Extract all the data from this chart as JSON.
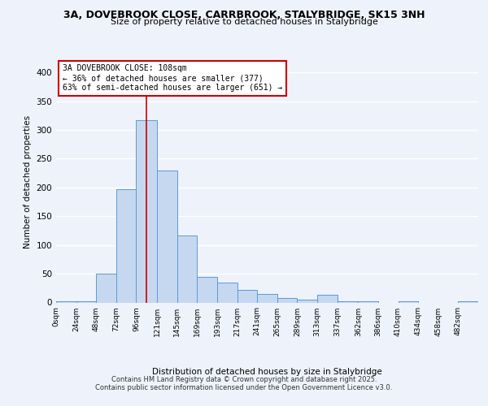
{
  "title1": "3A, DOVEBROOK CLOSE, CARRBROOK, STALYBRIDGE, SK15 3NH",
  "title2": "Size of property relative to detached houses in Stalybridge",
  "xlabel": "Distribution of detached houses by size in Stalybridge",
  "ylabel": "Number of detached properties",
  "bin_edges": [
    0,
    24,
    48,
    72,
    96,
    121,
    145,
    169,
    193,
    217,
    241,
    265,
    289,
    313,
    337,
    362,
    386,
    410,
    434,
    458,
    482,
    506
  ],
  "bar_heights": [
    2,
    2,
    50,
    197,
    317,
    230,
    117,
    45,
    35,
    22,
    15,
    8,
    5,
    13,
    2,
    2,
    0,
    2,
    0,
    0,
    2
  ],
  "bar_color": "#c5d8f0",
  "bar_edge_color": "#5b9bd5",
  "property_size": 108,
  "vline_color": "#cc0000",
  "annotation_line1": "3A DOVEBROOK CLOSE: 108sqm",
  "annotation_line2": "← 36% of detached houses are smaller (377)",
  "annotation_line3": "63% of semi-detached houses are larger (651) →",
  "annotation_box_color": "#ffffff",
  "annotation_box_edge_color": "#cc0000",
  "ylim": [
    0,
    420
  ],
  "yticks": [
    0,
    50,
    100,
    150,
    200,
    250,
    300,
    350,
    400
  ],
  "background_color": "#eef2fb",
  "grid_color": "#ffffff",
  "footer1": "Contains HM Land Registry data © Crown copyright and database right 2025.",
  "footer2": "Contains public sector information licensed under the Open Government Licence v3.0.",
  "tick_labels": [
    "0sqm",
    "24sqm",
    "48sqm",
    "72sqm",
    "96sqm",
    "121sqm",
    "145sqm",
    "169sqm",
    "193sqm",
    "217sqm",
    "241sqm",
    "265sqm",
    "289sqm",
    "313sqm",
    "337sqm",
    "362sqm",
    "386sqm",
    "410sqm",
    "434sqm",
    "458sqm",
    "482sqm"
  ]
}
